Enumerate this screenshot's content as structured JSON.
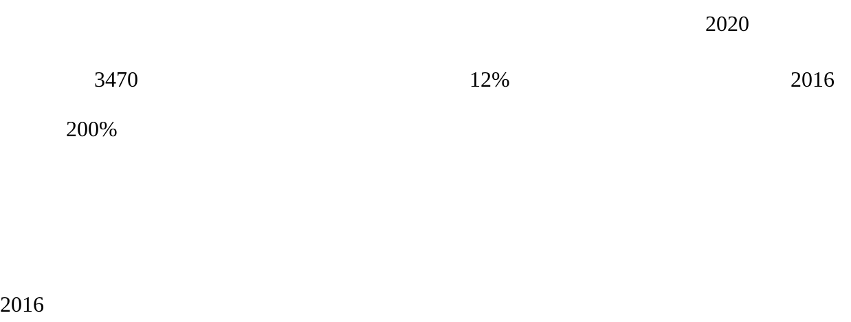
{
  "lines": [
    [
      "2020"
    ],
    [
      "3470",
      "12%",
      "2016"
    ],
    [
      "200%"
    ],
    [
      "2016"
    ]
  ]
}
